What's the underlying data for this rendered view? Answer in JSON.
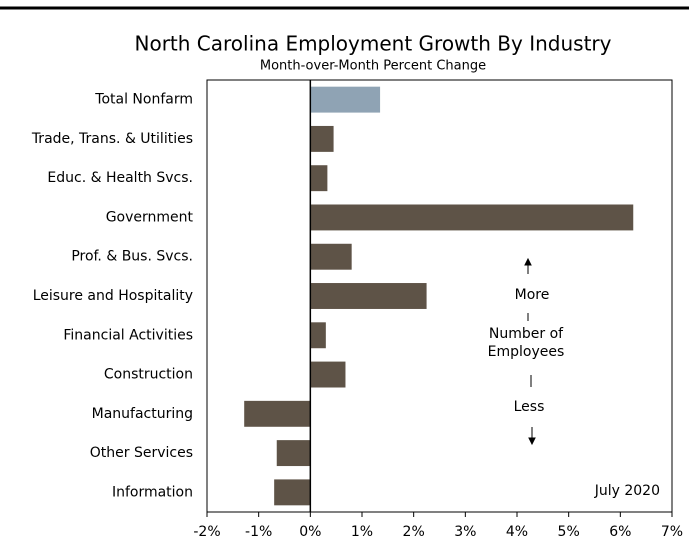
{
  "chart_data": {
    "type": "barh",
    "title": "North Carolina Employment Growth By Industry",
    "subtitle": "Month-over-Month Percent Change",
    "categories": [
      "Total Nonfarm",
      "Trade, Trans. & Utilities",
      "Educ. & Health Svcs.",
      "Government",
      "Prof. & Bus. Svcs.",
      "Leisure and Hospitality",
      "Financial Activities",
      "Construction",
      "Manufacturing",
      "Other Services",
      "Information"
    ],
    "values": [
      1.35,
      0.45,
      0.33,
      6.25,
      0.8,
      2.25,
      0.3,
      0.68,
      -1.28,
      -0.65,
      -0.7
    ],
    "colors": [
      "#8fa3b4",
      "#5e5347",
      "#5e5347",
      "#5e5347",
      "#5e5347",
      "#5e5347",
      "#5e5347",
      "#5e5347",
      "#5e5347",
      "#5e5347",
      "#5e5347"
    ],
    "xlim": [
      -2,
      7
    ],
    "xticks": [
      {
        "value": -2,
        "label": "-2%"
      },
      {
        "value": -1,
        "label": "-1%"
      },
      {
        "value": 0,
        "label": "0%"
      },
      {
        "value": 1,
        "label": "1%"
      },
      {
        "value": 2,
        "label": "2%"
      },
      {
        "value": 3,
        "label": "3%"
      },
      {
        "value": 4,
        "label": "4%"
      },
      {
        "value": 5,
        "label": "5%"
      },
      {
        "value": 6,
        "label": "6%"
      },
      {
        "value": 7,
        "label": "7%"
      }
    ],
    "annotations": {
      "more": "More",
      "number_of_employees": [
        "Number of",
        "Employees"
      ],
      "less": "Less",
      "date": "July 2020"
    }
  }
}
